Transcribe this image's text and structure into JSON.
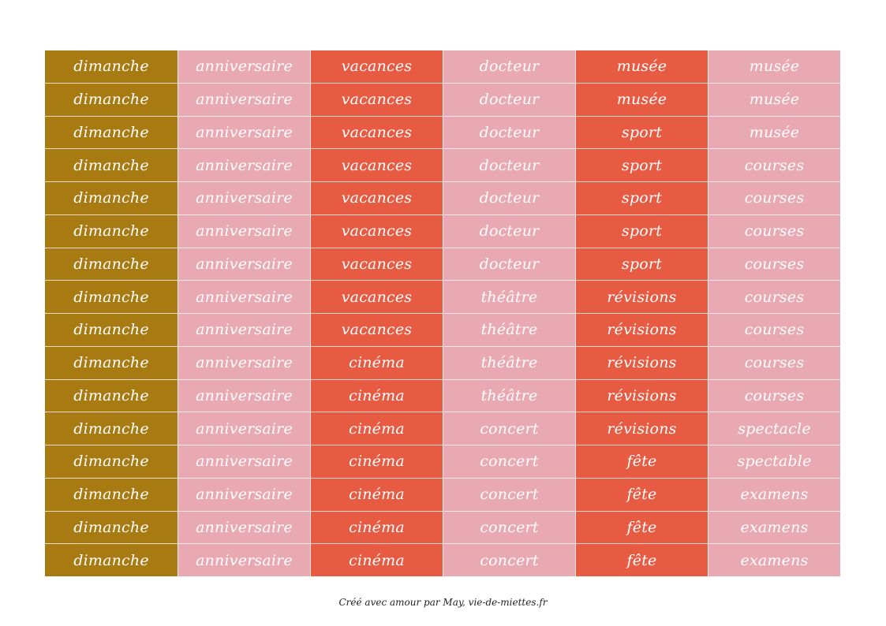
{
  "table": {
    "columns": [
      {
        "color": "#a87a12",
        "cells": [
          "dimanche",
          "dimanche",
          "dimanche",
          "dimanche",
          "dimanche",
          "dimanche",
          "dimanche",
          "dimanche",
          "dimanche",
          "dimanche",
          "dimanche",
          "dimanche",
          "dimanche",
          "dimanche",
          "dimanche",
          "dimanche"
        ]
      },
      {
        "color": "#e9a9b3",
        "cells": [
          "anniversaire",
          "anniversaire",
          "anniversaire",
          "anniversaire",
          "anniversaire",
          "anniversaire",
          "anniversaire",
          "anniversaire",
          "anniversaire",
          "anniversaire",
          "anniversaire",
          "anniversaire",
          "anniversaire",
          "anniversaire",
          "anniversaire",
          "anniversaire"
        ]
      },
      {
        "color": "#e85b43",
        "cells": [
          "vacances",
          "vacances",
          "vacances",
          "vacances",
          "vacances",
          "vacances",
          "vacances",
          "vacances",
          "vacances",
          "cinéma",
          "cinéma",
          "cinéma",
          "cinéma",
          "cinéma",
          "cinéma",
          "cinéma"
        ]
      },
      {
        "color": "#e9a9b3",
        "cells": [
          "docteur",
          "docteur",
          "docteur",
          "docteur",
          "docteur",
          "docteur",
          "docteur",
          "théâtre",
          "théâtre",
          "théâtre",
          "théâtre",
          "concert",
          "concert",
          "concert",
          "concert",
          "concert"
        ]
      },
      {
        "color": "#e85b43",
        "cells": [
          "musée",
          "musée",
          "sport",
          "sport",
          "sport",
          "sport",
          "sport",
          "révisions",
          "révisions",
          "révisions",
          "révisions",
          "révisions",
          "fête",
          "fête",
          "fête",
          "fête"
        ]
      },
      {
        "color": "#e9a9b3",
        "cells": [
          "musée",
          "musée",
          "musée",
          "courses",
          "courses",
          "courses",
          "courses",
          "courses",
          "courses",
          "courses",
          "courses",
          "spectacle",
          "spectable",
          "examens",
          "examens",
          "examens"
        ]
      }
    ]
  },
  "footer": {
    "credit": "Créé avec amour par May, vie-de-miettes.fr"
  }
}
